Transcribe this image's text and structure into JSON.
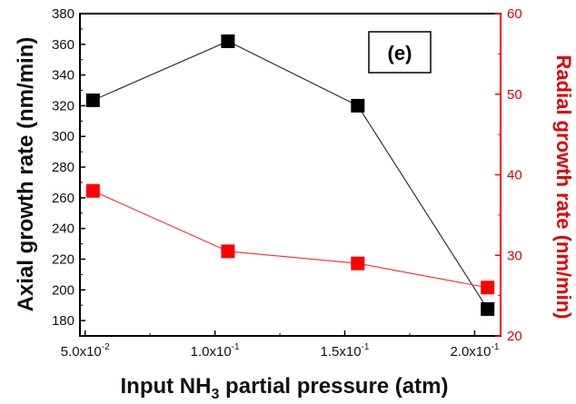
{
  "chart_data": {
    "type": "line",
    "title": "",
    "xlabel": {
      "prefix": "Input NH",
      "subscript": "3",
      "suffix": " partial pressure (atm)"
    },
    "ylabel": "Axial growth rate (nm/min)",
    "y2label": "Radial growth rate (nm/min)",
    "annotation": "(e)",
    "xlim": [
      0.048,
      0.21
    ],
    "ylim": [
      170,
      380
    ],
    "y2lim": [
      20,
      60
    ],
    "x_ticks": [
      {
        "value": 0.05,
        "mantissa": "5.0x10",
        "exponent": "-2"
      },
      {
        "value": 0.1,
        "mantissa": "1.0x10",
        "exponent": "-1"
      },
      {
        "value": 0.15,
        "mantissa": "1.5x10",
        "exponent": "-1"
      },
      {
        "value": 0.2,
        "mantissa": "2.0x10",
        "exponent": "-1"
      }
    ],
    "y_ticks": [
      180,
      200,
      220,
      240,
      260,
      280,
      300,
      320,
      340,
      360,
      380
    ],
    "y2_ticks": [
      20,
      30,
      40,
      50,
      60
    ],
    "grid": false,
    "series": [
      {
        "axis": "left",
        "color": "#000000",
        "line_color": "#333333",
        "marker": "square",
        "x": [
          0.053,
          0.105,
          0.155,
          0.205
        ],
        "values": [
          323.5,
          362,
          320,
          187.5
        ]
      },
      {
        "axis": "right",
        "color": "#ff0000",
        "line_color": "#ff3b3b",
        "marker": "square",
        "x": [
          0.053,
          0.105,
          0.155,
          0.205
        ],
        "values": [
          38,
          30.5,
          29,
          26
        ]
      }
    ]
  }
}
